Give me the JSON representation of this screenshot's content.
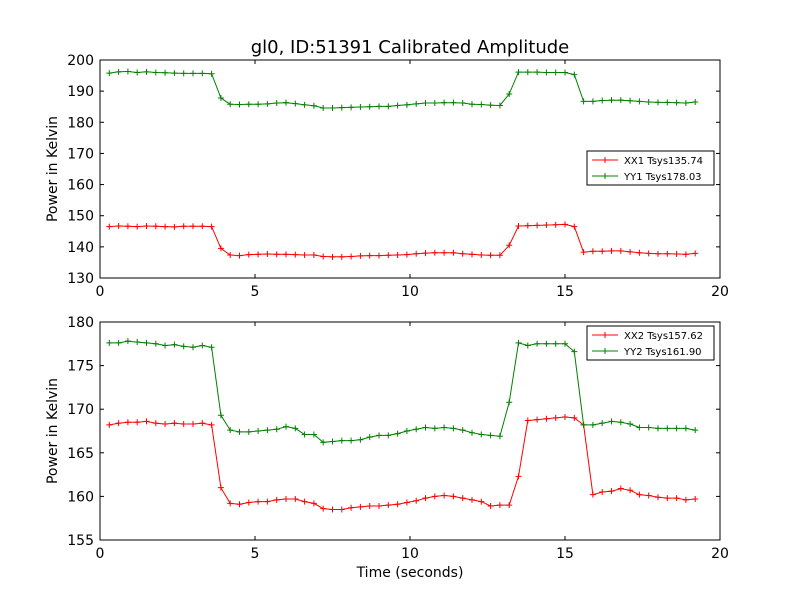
{
  "title": "gl0, ID:51391 Calibrated Amplitude",
  "colors": {
    "red": "#ff0000",
    "green": "#008000"
  },
  "chart_data": [
    {
      "type": "line",
      "ylabel": "Power in Kelvin",
      "xlabel": "",
      "xlim": [
        0,
        20
      ],
      "ylim": [
        130,
        200
      ],
      "xticks": [
        0,
        5,
        10,
        15,
        20
      ],
      "yticks": [
        130,
        140,
        150,
        160,
        170,
        180,
        190,
        200
      ],
      "grid": false,
      "legend_position": "center-right",
      "x": [
        0.3,
        0.6,
        0.9,
        1.2,
        1.5,
        1.8,
        2.1,
        2.4,
        2.7,
        3.0,
        3.3,
        3.6,
        3.9,
        4.2,
        4.5,
        4.8,
        5.1,
        5.4,
        5.7,
        6.0,
        6.3,
        6.6,
        6.9,
        7.2,
        7.5,
        7.8,
        8.1,
        8.4,
        8.7,
        9.0,
        9.3,
        9.6,
        9.9,
        10.2,
        10.5,
        10.8,
        11.1,
        11.4,
        11.7,
        12.0,
        12.3,
        12.6,
        12.9,
        13.2,
        13.5,
        13.8,
        14.1,
        14.4,
        14.7,
        15.0,
        15.3,
        15.6,
        15.9,
        16.2,
        16.5,
        16.8,
        17.1,
        17.4,
        17.7,
        18.0,
        18.3,
        18.6,
        18.9,
        19.2
      ],
      "series": [
        {
          "name": "XX1 Tsys135.74",
          "color": "#ff0000",
          "values": [
            146.5,
            146.7,
            146.6,
            146.5,
            146.7,
            146.6,
            146.5,
            146.4,
            146.6,
            146.6,
            146.6,
            146.5,
            139.5,
            137.4,
            137.2,
            137.5,
            137.6,
            137.7,
            137.6,
            137.6,
            137.5,
            137.4,
            137.4,
            136.9,
            136.8,
            136.8,
            136.9,
            137.1,
            137.2,
            137.2,
            137.3,
            137.4,
            137.5,
            137.8,
            138.0,
            138.1,
            138.1,
            138.1,
            137.8,
            137.6,
            137.4,
            137.3,
            137.3,
            140.5,
            146.7,
            146.8,
            146.9,
            147.0,
            147.1,
            147.2,
            146.5,
            138.3,
            138.6,
            138.6,
            138.7,
            138.7,
            138.4,
            138.1,
            137.9,
            137.8,
            137.8,
            137.7,
            137.6,
            137.9
          ]
        },
        {
          "name": "YY1 Tsys178.03",
          "color": "#008000",
          "values": [
            195.8,
            196.2,
            196.3,
            196.0,
            196.2,
            196.0,
            195.9,
            195.8,
            195.7,
            195.7,
            195.7,
            195.6,
            187.8,
            185.8,
            185.7,
            185.8,
            185.8,
            185.9,
            186.2,
            186.3,
            186.0,
            185.6,
            185.3,
            184.6,
            184.6,
            184.7,
            184.8,
            184.9,
            185.0,
            185.1,
            185.1,
            185.4,
            185.6,
            185.9,
            186.2,
            186.2,
            186.3,
            186.3,
            186.2,
            185.8,
            185.7,
            185.5,
            185.4,
            189.1,
            196.1,
            196.1,
            196.1,
            196.0,
            196.0,
            196.0,
            195.3,
            186.7,
            186.7,
            187.0,
            187.1,
            187.1,
            186.9,
            186.7,
            186.5,
            186.4,
            186.4,
            186.3,
            186.2,
            186.5
          ]
        }
      ]
    },
    {
      "type": "line",
      "ylabel": "Power in Kelvin",
      "xlabel": "Time (seconds)",
      "xlim": [
        0,
        20
      ],
      "ylim": [
        155,
        180
      ],
      "xticks": [
        0,
        5,
        10,
        15,
        20
      ],
      "yticks": [
        155,
        160,
        165,
        170,
        175,
        180
      ],
      "grid": false,
      "legend_position": "top-right",
      "x": [
        0.3,
        0.6,
        0.9,
        1.2,
        1.5,
        1.8,
        2.1,
        2.4,
        2.7,
        3.0,
        3.3,
        3.6,
        3.9,
        4.2,
        4.5,
        4.8,
        5.1,
        5.4,
        5.7,
        6.0,
        6.3,
        6.6,
        6.9,
        7.2,
        7.5,
        7.8,
        8.1,
        8.4,
        8.7,
        9.0,
        9.3,
        9.6,
        9.9,
        10.2,
        10.5,
        10.8,
        11.1,
        11.4,
        11.7,
        12.0,
        12.3,
        12.6,
        12.9,
        13.2,
        13.5,
        13.8,
        14.1,
        14.4,
        14.7,
        15.0,
        15.3,
        15.6,
        15.9,
        16.2,
        16.5,
        16.8,
        17.1,
        17.4,
        17.7,
        18.0,
        18.3,
        18.6,
        18.9,
        19.2
      ],
      "series": [
        {
          "name": "XX2 Tsys157.62",
          "color": "#ff0000",
          "values": [
            168.2,
            168.4,
            168.5,
            168.5,
            168.6,
            168.4,
            168.3,
            168.4,
            168.3,
            168.3,
            168.4,
            168.2,
            161.0,
            159.2,
            159.1,
            159.3,
            159.4,
            159.4,
            159.6,
            159.7,
            159.7,
            159.4,
            159.2,
            158.6,
            158.5,
            158.5,
            158.7,
            158.8,
            158.9,
            158.9,
            159.0,
            159.1,
            159.3,
            159.5,
            159.8,
            160.0,
            160.1,
            160.0,
            159.8,
            159.6,
            159.4,
            158.9,
            159.0,
            159.0,
            162.3,
            168.7,
            168.8,
            168.9,
            169.0,
            169.1,
            169.0,
            168.2,
            160.2,
            160.5,
            160.6,
            160.9,
            160.7,
            160.2,
            160.1,
            159.9,
            159.8,
            159.8,
            159.6,
            159.7
          ]
        },
        {
          "name": "YY2 Tsys161.90",
          "color": "#008000",
          "values": [
            177.6,
            177.6,
            177.8,
            177.7,
            177.6,
            177.5,
            177.3,
            177.4,
            177.2,
            177.1,
            177.3,
            177.1,
            169.3,
            167.6,
            167.4,
            167.4,
            167.5,
            167.6,
            167.7,
            168.0,
            167.8,
            167.1,
            167.1,
            166.2,
            166.3,
            166.4,
            166.4,
            166.5,
            166.8,
            167.0,
            167.0,
            167.2,
            167.5,
            167.7,
            167.9,
            167.8,
            167.9,
            167.8,
            167.6,
            167.3,
            167.1,
            167.0,
            166.9,
            170.8,
            177.6,
            177.3,
            177.5,
            177.5,
            177.5,
            177.5,
            176.6,
            168.2,
            168.2,
            168.4,
            168.6,
            168.5,
            168.3,
            167.9,
            167.9,
            167.8,
            167.8,
            167.8,
            167.8,
            167.6
          ]
        }
      ]
    }
  ]
}
